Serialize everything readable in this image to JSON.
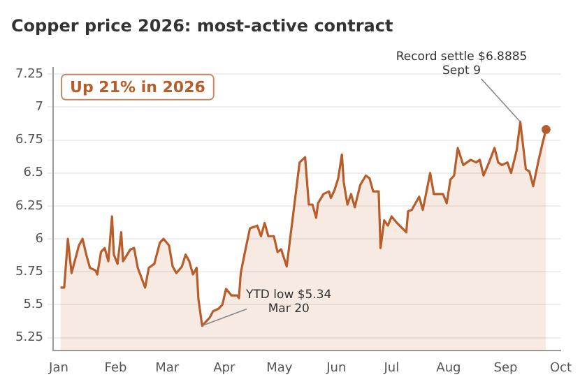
{
  "chart_data": {
    "type": "area",
    "title": "Copper price 2026: most-active contract",
    "x": [
      "2026-01-02",
      "2026-01-04",
      "2026-01-06",
      "2026-01-08",
      "2026-01-12",
      "2026-01-14",
      "2026-01-16",
      "2026-01-18",
      "2026-01-21",
      "2026-01-22",
      "2026-01-24",
      "2026-01-26",
      "2026-01-28",
      "2026-01-30",
      "2026-01-31",
      "2026-02-02",
      "2026-02-04",
      "2026-02-05",
      "2026-02-09",
      "2026-02-11",
      "2026-02-13",
      "2026-02-17",
      "2026-02-19",
      "2026-02-22",
      "2026-02-25",
      "2026-02-27",
      "2026-03-02",
      "2026-03-04",
      "2026-03-06",
      "2026-03-09",
      "2026-03-11",
      "2026-03-13",
      "2026-03-15",
      "2026-03-17",
      "2026-03-18",
      "2026-03-20",
      "2026-03-24",
      "2026-03-26",
      "2026-03-29",
      "2026-03-31",
      "2026-04-02",
      "2026-04-05",
      "2026-04-08",
      "2026-04-09",
      "2026-04-10",
      "2026-04-12",
      "2026-04-15",
      "2026-04-19",
      "2026-04-21",
      "2026-04-23",
      "2026-04-25",
      "2026-04-28",
      "2026-04-30",
      "2026-05-02",
      "2026-05-05",
      "2026-05-08",
      "2026-05-12",
      "2026-05-15",
      "2026-05-17",
      "2026-05-19",
      "2026-05-21",
      "2026-05-22",
      "2026-05-25",
      "2026-05-28",
      "2026-05-29",
      "2026-05-31",
      "2026-06-02",
      "2026-06-04",
      "2026-06-05",
      "2026-06-07",
      "2026-06-09",
      "2026-06-11",
      "2026-06-14",
      "2026-06-17",
      "2026-06-19",
      "2026-06-21",
      "2026-06-24",
      "2026-06-25",
      "2026-06-27",
      "2026-06-29",
      "2026-07-01",
      "2026-07-04",
      "2026-07-09",
      "2026-07-10",
      "2026-07-12",
      "2026-07-16",
      "2026-07-18",
      "2026-07-22",
      "2026-07-24",
      "2026-07-27",
      "2026-07-29",
      "2026-07-31",
      "2026-08-02",
      "2026-08-04",
      "2026-08-06",
      "2026-08-09",
      "2026-08-13",
      "2026-08-16",
      "2026-08-18",
      "2026-08-20",
      "2026-08-23",
      "2026-08-26",
      "2026-08-28",
      "2026-08-30",
      "2026-09-02",
      "2026-09-04",
      "2026-09-07",
      "2026-09-09",
      "2026-09-12",
      "2026-09-14",
      "2026-09-16",
      "2026-09-19",
      "2026-09-21",
      "2026-09-23"
    ],
    "series": [
      {
        "color": "#b85c2a",
        "values": [
          5.63,
          5.63,
          6.0,
          5.74,
          5.95,
          6.0,
          5.88,
          5.78,
          5.76,
          5.73,
          5.9,
          5.93,
          5.83,
          6.17,
          5.88,
          5.81,
          6.05,
          5.83,
          5.92,
          5.93,
          5.78,
          5.63,
          5.78,
          5.81,
          5.97,
          6.0,
          5.95,
          5.79,
          5.74,
          5.79,
          5.88,
          5.83,
          5.73,
          5.78,
          5.54,
          5.34,
          5.4,
          5.45,
          5.47,
          5.5,
          5.62,
          5.57,
          5.57,
          5.55,
          5.74,
          5.88,
          6.08,
          6.1,
          6.02,
          6.12,
          6.02,
          6.02,
          5.9,
          5.92,
          5.79,
          6.13,
          6.58,
          6.62,
          6.26,
          6.26,
          6.16,
          6.27,
          6.34,
          6.36,
          6.31,
          6.37,
          6.46,
          6.64,
          6.43,
          6.26,
          6.34,
          6.24,
          6.41,
          6.48,
          6.46,
          6.36,
          6.36,
          5.93,
          6.14,
          6.1,
          6.17,
          6.12,
          6.05,
          6.21,
          6.22,
          6.32,
          6.22,
          6.5,
          6.34,
          6.34,
          6.34,
          6.27,
          6.45,
          6.48,
          6.69,
          6.56,
          6.6,
          6.58,
          6.6,
          6.48,
          6.58,
          6.69,
          6.58,
          6.56,
          6.58,
          6.5,
          6.67,
          6.8885,
          6.53,
          6.51,
          6.4,
          6.6,
          6.72,
          6.83
        ]
      }
    ],
    "xlim": [
      "2025-12-29",
      "2026-10-01"
    ],
    "xticks": [
      {
        "value": "2026-01-01",
        "label": "Jan"
      },
      {
        "value": "2026-02-01",
        "label": "Feb"
      },
      {
        "value": "2026-03-01",
        "label": "Mar"
      },
      {
        "value": "2026-04-01",
        "label": "Apr"
      },
      {
        "value": "2026-05-01",
        "label": "May"
      },
      {
        "value": "2026-06-01",
        "label": "Jun"
      },
      {
        "value": "2026-07-01",
        "label": "Jul"
      },
      {
        "value": "2026-08-01",
        "label": "Aug"
      },
      {
        "value": "2026-09-01",
        "label": "Sep"
      },
      {
        "value": "2026-10-01",
        "label": "Oct"
      }
    ],
    "ylim": [
      5.15,
      7.3
    ],
    "yticks": [
      5.25,
      5.5,
      5.75,
      6.0,
      6.25,
      6.5,
      6.75,
      7.0,
      7.25
    ],
    "grid": "y",
    "legend": false,
    "annotations": [
      "Up 21% in 2026",
      {
        "text": "Record settle $6.8885\nSept 9",
        "x": "2026-09-09",
        "y": 6.8885
      },
      {
        "text": "YTD low $5.34\nMar 20",
        "x": "2026-03-20",
        "y": 5.34
      }
    ]
  }
}
